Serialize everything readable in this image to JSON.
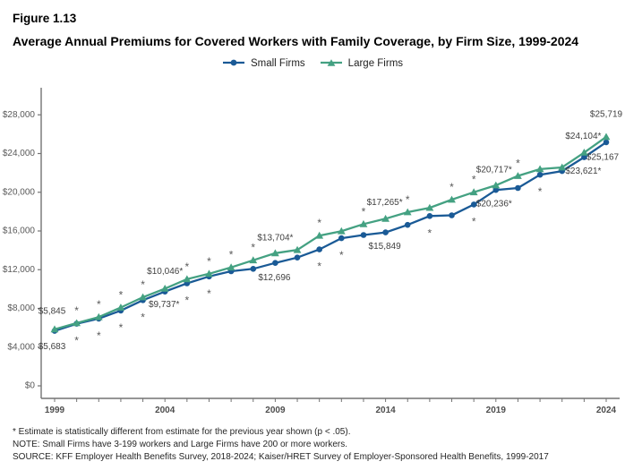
{
  "figure": {
    "label": "Figure 1.13",
    "title": "Average Annual Premiums for Covered Workers with Family Coverage, by Firm Size, 1999-2024"
  },
  "colors": {
    "small_firms": "#1a5a96",
    "large_firms": "#44a182",
    "axis": "#737373",
    "tick_label": "#595959",
    "x_label": "#4d4d4d",
    "data_label": "#404040",
    "asterisk": "#595959"
  },
  "chart_data": {
    "type": "line",
    "title": "Average Annual Premiums for Covered Workers with Family Coverage, by Firm Size, 1999-2024",
    "xlabel": "",
    "ylabel": "",
    "ylim": [
      0,
      28000
    ],
    "ytick_step": 4000,
    "ytick_prefix": "$",
    "grid": false,
    "legend_position": "top",
    "x": [
      1999,
      2000,
      2001,
      2002,
      2003,
      2004,
      2005,
      2006,
      2007,
      2008,
      2009,
      2010,
      2011,
      2012,
      2013,
      2014,
      2015,
      2016,
      2017,
      2018,
      2019,
      2020,
      2021,
      2022,
      2023,
      2024
    ],
    "xticks_labeled": [
      1999,
      2004,
      2009,
      2014,
      2019,
      2024
    ],
    "series": [
      {
        "name": "Small Firms",
        "marker": "circle",
        "color": "#1a5a96",
        "values": [
          5683,
          6415,
          6950,
          7780,
          8850,
          9737,
          10587,
          11306,
          11835,
          12091,
          12696,
          13250,
          14098,
          15253,
          15581,
          15849,
          16625,
          17546,
          17615,
          18739,
          20236,
          20438,
          21804,
          22186,
          23621,
          25167
        ],
        "asterisk_years": [
          2000,
          2001,
          2002,
          2003,
          2005,
          2006,
          2011,
          2012,
          2016,
          2018,
          2021
        ],
        "asterisk_side": "below",
        "point_labels": [
          {
            "year": 1999,
            "text": "$5,683",
            "dx": -3,
            "dy": 18
          },
          {
            "year": 2004,
            "text": "$9,737*",
            "dx": -1,
            "dy": 15
          },
          {
            "year": 2009,
            "text": "$12,696",
            "dx": -1,
            "dy": 17
          },
          {
            "year": 2014,
            "text": "$15,849",
            "dx": -1,
            "dy": 16
          },
          {
            "year": 2019,
            "text": "$20,236*",
            "dx": -2,
            "dy": 16
          },
          {
            "year": 2023,
            "text": "$23,621*",
            "dx": -1,
            "dy": 16
          },
          {
            "year": 2024,
            "text": "$25,167",
            "dx": -4,
            "dy": 17
          }
        ]
      },
      {
        "name": "Large Firms",
        "marker": "triangle",
        "color": "#44a182",
        "values": [
          5845,
          6483,
          7101,
          8088,
          9152,
          10046,
          11025,
          11575,
          12233,
          12973,
          13704,
          14038,
          15520,
          15980,
          16715,
          17265,
          17938,
          18395,
          19235,
          20005,
          20717,
          21691,
          22389,
          22564,
          24104,
          25719
        ],
        "asterisk_years": [
          2000,
          2001,
          2002,
          2003,
          2005,
          2006,
          2007,
          2008,
          2011,
          2013,
          2015,
          2017,
          2018,
          2020
        ],
        "asterisk_side": "above",
        "point_labels": [
          {
            "year": 1999,
            "text": "$5,845",
            "dx": -3,
            "dy": -20
          },
          {
            "year": 2004,
            "text": "$10,046*",
            "dx": 0,
            "dy": -19
          },
          {
            "year": 2009,
            "text": "$13,704*",
            "dx": 0,
            "dy": -17
          },
          {
            "year": 2014,
            "text": "$17,265*",
            "dx": -1,
            "dy": -18
          },
          {
            "year": 2019,
            "text": "$20,717*",
            "dx": -2,
            "dy": -17
          },
          {
            "year": 2023,
            "text": "$24,104*",
            "dx": -1,
            "dy": -18
          },
          {
            "year": 2024,
            "text": "$25,719",
            "dx": 0,
            "dy": -25
          }
        ]
      }
    ]
  },
  "footnotes": [
    "* Estimate is statistically different from estimate for the previous year shown (p < .05).",
    "NOTE: Small Firms have 3-199 workers and Large Firms have 200 or more workers.",
    "SOURCE: KFF Employer Health Benefits Survey, 2018-2024; Kaiser/HRET Survey of Employer-Sponsored Health Benefits, 1999-2017"
  ]
}
